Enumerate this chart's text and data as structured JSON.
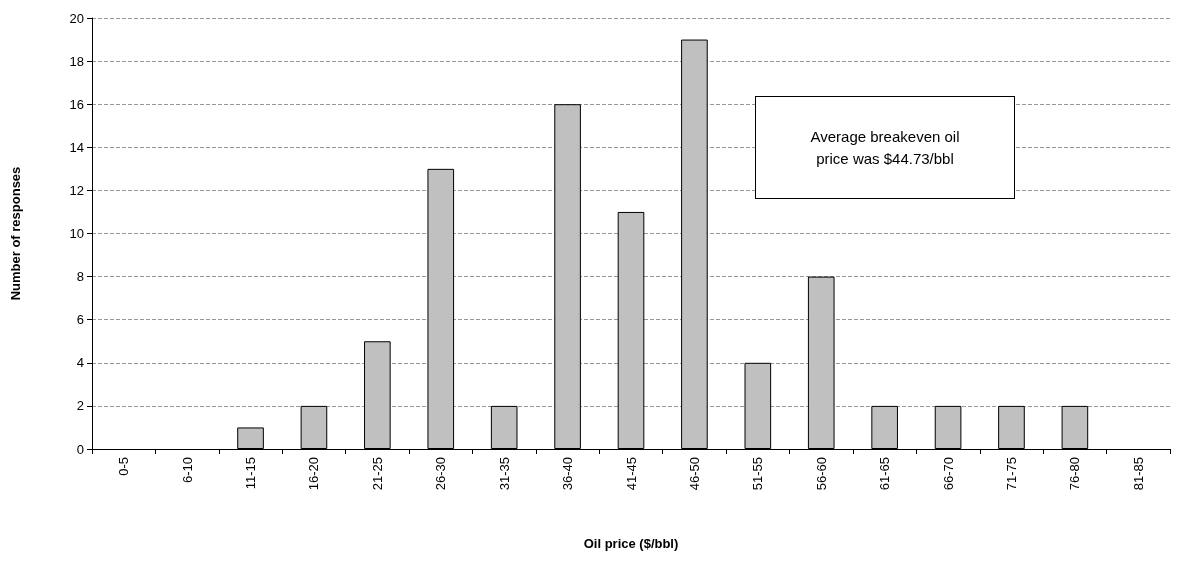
{
  "chart_data": {
    "type": "bar",
    "xlabel": "Oil price ($/bbl)",
    "ylabel": "Number of responses",
    "categories": [
      "0-5",
      "6-10",
      "11-15",
      "16-20",
      "21-25",
      "26-30",
      "31-35",
      "36-40",
      "41-45",
      "46-50",
      "51-55",
      "56-60",
      "61-65",
      "66-70",
      "71-75",
      "76-80",
      "81-85"
    ],
    "values": [
      0,
      0,
      1,
      2,
      5,
      13,
      2,
      16,
      11,
      19,
      4,
      8,
      2,
      2,
      2,
      2,
      0
    ],
    "color": "#c0c0c0",
    "ylim": [
      0,
      20
    ],
    "yticks": [
      0,
      2,
      4,
      6,
      8,
      10,
      12,
      14,
      16,
      18,
      20
    ],
    "grid": "y",
    "annotations": [
      "Average breakeven oil price was $44.73/bbl"
    ]
  }
}
